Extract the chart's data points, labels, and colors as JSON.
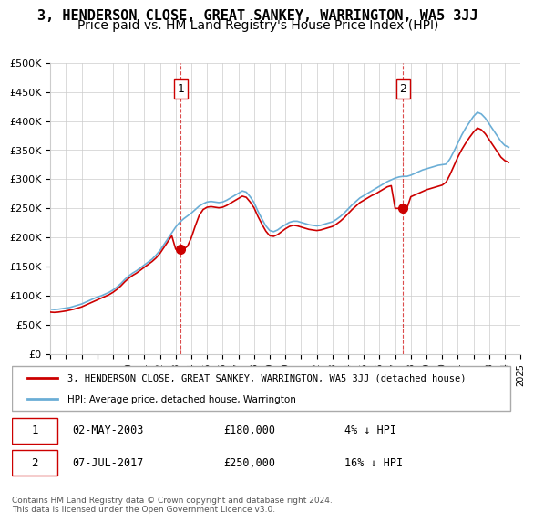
{
  "title": "3, HENDERSON CLOSE, GREAT SANKEY, WARRINGTON, WA5 3JJ",
  "subtitle": "Price paid vs. HM Land Registry's House Price Index (HPI)",
  "legend_line1": "3, HENDERSON CLOSE, GREAT SANKEY, WARRINGTON, WA5 3JJ (detached house)",
  "legend_line2": "HPI: Average price, detached house, Warrington",
  "transaction1_label": "1",
  "transaction1_date": "02-MAY-2003",
  "transaction1_price": "£180,000",
  "transaction1_hpi": "4% ↓ HPI",
  "transaction1_year": 2003.33,
  "transaction1_value": 180000,
  "transaction2_label": "2",
  "transaction2_date": "07-JUL-2017",
  "transaction2_price": "£250,000",
  "transaction2_hpi": "16% ↓ HPI",
  "transaction2_year": 2017.5,
  "transaction2_value": 250000,
  "footer": "Contains HM Land Registry data © Crown copyright and database right 2024.\nThis data is licensed under the Open Government Licence v3.0.",
  "hpi_color": "#6baed6",
  "price_color": "#cc0000",
  "marker_color": "#cc0000",
  "vline_color": "#cc0000",
  "grid_color": "#cccccc",
  "background_color": "#ffffff",
  "ylim_min": 0,
  "ylim_max": 500000,
  "ytick_step": 50000,
  "xmin": 1995,
  "xmax": 2025,
  "title_fontsize": 11,
  "subtitle_fontsize": 10,
  "hpi_data_x": [
    1995.0,
    1995.25,
    1995.5,
    1995.75,
    1996.0,
    1996.25,
    1996.5,
    1996.75,
    1997.0,
    1997.25,
    1997.5,
    1997.75,
    1998.0,
    1998.25,
    1998.5,
    1998.75,
    1999.0,
    1999.25,
    1999.5,
    1999.75,
    2000.0,
    2000.25,
    2000.5,
    2000.75,
    2001.0,
    2001.25,
    2001.5,
    2001.75,
    2002.0,
    2002.25,
    2002.5,
    2002.75,
    2003.0,
    2003.25,
    2003.5,
    2003.75,
    2004.0,
    2004.25,
    2004.5,
    2004.75,
    2005.0,
    2005.25,
    2005.5,
    2005.75,
    2006.0,
    2006.25,
    2006.5,
    2006.75,
    2007.0,
    2007.25,
    2007.5,
    2007.75,
    2008.0,
    2008.25,
    2008.5,
    2008.75,
    2009.0,
    2009.25,
    2009.5,
    2009.75,
    2010.0,
    2010.25,
    2010.5,
    2010.75,
    2011.0,
    2011.25,
    2011.5,
    2011.75,
    2012.0,
    2012.25,
    2012.5,
    2012.75,
    2013.0,
    2013.25,
    2013.5,
    2013.75,
    2014.0,
    2014.25,
    2014.5,
    2014.75,
    2015.0,
    2015.25,
    2015.5,
    2015.75,
    2016.0,
    2016.25,
    2016.5,
    2016.75,
    2017.0,
    2017.25,
    2017.5,
    2017.75,
    2018.0,
    2018.25,
    2018.5,
    2018.75,
    2019.0,
    2019.25,
    2019.5,
    2019.75,
    2020.0,
    2020.25,
    2020.5,
    2020.75,
    2021.0,
    2021.25,
    2021.5,
    2021.75,
    2022.0,
    2022.25,
    2022.5,
    2022.75,
    2023.0,
    2023.25,
    2023.5,
    2023.75,
    2024.0,
    2024.25
  ],
  "hpi_data_y": [
    77000,
    76500,
    77000,
    78000,
    79000,
    80000,
    82000,
    84000,
    86000,
    89000,
    92000,
    95000,
    98000,
    100000,
    103000,
    106000,
    110000,
    115000,
    121000,
    128000,
    134000,
    139000,
    143000,
    148000,
    153000,
    158000,
    163000,
    170000,
    178000,
    188000,
    198000,
    208000,
    218000,
    226000,
    232000,
    237000,
    242000,
    248000,
    254000,
    258000,
    261000,
    262000,
    261000,
    260000,
    261000,
    264000,
    268000,
    272000,
    276000,
    280000,
    278000,
    270000,
    260000,
    245000,
    232000,
    220000,
    212000,
    210000,
    213000,
    218000,
    222000,
    226000,
    228000,
    228000,
    226000,
    224000,
    222000,
    221000,
    220000,
    221000,
    223000,
    225000,
    227000,
    231000,
    236000,
    242000,
    249000,
    256000,
    262000,
    268000,
    272000,
    276000,
    280000,
    284000,
    288000,
    292000,
    296000,
    299000,
    302000,
    304000,
    305000,
    305000,
    307000,
    310000,
    313000,
    316000,
    318000,
    320000,
    322000,
    324000,
    325000,
    326000,
    335000,
    348000,
    362000,
    376000,
    388000,
    398000,
    408000,
    415000,
    412000,
    405000,
    395000,
    385000,
    375000,
    365000,
    358000,
    355000
  ],
  "price_data_x": [
    1995.0,
    1995.25,
    1995.5,
    1995.75,
    1996.0,
    1996.25,
    1996.5,
    1996.75,
    1997.0,
    1997.25,
    1997.5,
    1997.75,
    1998.0,
    1998.25,
    1998.5,
    1998.75,
    1999.0,
    1999.25,
    1999.5,
    1999.75,
    2000.0,
    2000.25,
    2000.5,
    2000.75,
    2001.0,
    2001.25,
    2001.5,
    2001.75,
    2002.0,
    2002.25,
    2002.5,
    2002.75,
    2003.0,
    2003.25,
    2003.5,
    2003.75,
    2004.0,
    2004.25,
    2004.5,
    2004.75,
    2005.0,
    2005.25,
    2005.5,
    2005.75,
    2006.0,
    2006.25,
    2006.5,
    2006.75,
    2007.0,
    2007.25,
    2007.5,
    2007.75,
    2008.0,
    2008.25,
    2008.5,
    2008.75,
    2009.0,
    2009.25,
    2009.5,
    2009.75,
    2010.0,
    2010.25,
    2010.5,
    2010.75,
    2011.0,
    2011.25,
    2011.5,
    2011.75,
    2012.0,
    2012.25,
    2012.5,
    2012.75,
    2013.0,
    2013.25,
    2013.5,
    2013.75,
    2014.0,
    2014.25,
    2014.5,
    2014.75,
    2015.0,
    2015.25,
    2015.5,
    2015.75,
    2016.0,
    2016.25,
    2016.5,
    2016.75,
    2017.0,
    2017.25,
    2017.5,
    2017.75,
    2018.0,
    2018.25,
    2018.5,
    2018.75,
    2019.0,
    2019.25,
    2019.5,
    2019.75,
    2020.0,
    2020.25,
    2020.5,
    2020.75,
    2021.0,
    2021.25,
    2021.5,
    2021.75,
    2022.0,
    2022.25,
    2022.5,
    2022.75,
    2023.0,
    2023.25,
    2023.5,
    2023.75,
    2024.0,
    2024.25
  ],
  "price_data_y": [
    72000,
    71500,
    72000,
    73000,
    74000,
    75500,
    77000,
    79000,
    81000,
    84000,
    87000,
    90000,
    93000,
    96000,
    99000,
    102000,
    106000,
    111000,
    117000,
    124000,
    130000,
    135000,
    139000,
    144000,
    149000,
    154000,
    159000,
    165000,
    173000,
    183000,
    193000,
    203000,
    180000,
    180000,
    180000,
    185000,
    200000,
    220000,
    238000,
    248000,
    252000,
    253000,
    252000,
    251000,
    252000,
    255000,
    259000,
    263000,
    267000,
    271000,
    269000,
    261000,
    251000,
    236000,
    223000,
    211000,
    203000,
    202000,
    205000,
    210000,
    215000,
    219000,
    221000,
    220000,
    218000,
    216000,
    214000,
    213000,
    212000,
    213000,
    215000,
    217000,
    219000,
    223000,
    228000,
    234000,
    241000,
    248000,
    254000,
    260000,
    264000,
    268000,
    272000,
    275000,
    279000,
    283000,
    287000,
    289000,
    250000,
    250000,
    250000,
    250000,
    270000,
    273000,
    276000,
    279000,
    282000,
    284000,
    286000,
    288000,
    290000,
    295000,
    308000,
    323000,
    338000,
    351000,
    362000,
    372000,
    381000,
    388000,
    385000,
    378000,
    368000,
    358000,
    348000,
    338000,
    332000,
    329000
  ]
}
